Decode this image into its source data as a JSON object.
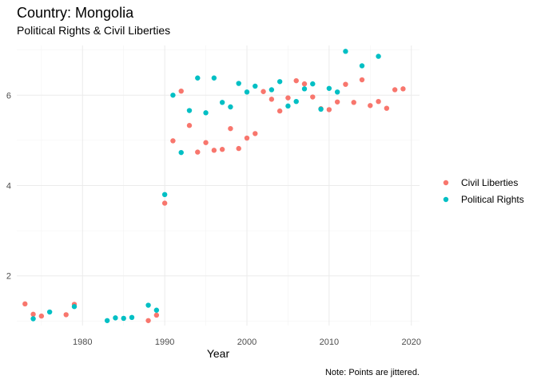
{
  "chart_data": {
    "type": "scatter",
    "title": "Country: Mongolia",
    "subtitle": "Political Rights & Civil Liberties",
    "xlabel": "Year",
    "ylabel": "",
    "caption": "Note: Points are jittered.",
    "xlim": [
      1972,
      2021
    ],
    "ylim": [
      0.9,
      7.1
    ],
    "x_ticks": [
      1980,
      1990,
      2000,
      2010,
      2020
    ],
    "y_ticks": [
      2,
      4,
      6
    ],
    "grid": true,
    "legend_position": "right",
    "series": [
      {
        "name": "Civil Liberties",
        "color": "#F8766D",
        "points": [
          [
            1973,
            1.38
          ],
          [
            1974,
            1.15
          ],
          [
            1975,
            1.11
          ],
          [
            1978,
            1.14
          ],
          [
            1979,
            1.37
          ],
          [
            1988,
            1.01
          ],
          [
            1989,
            1.13
          ],
          [
            1990,
            3.61
          ],
          [
            1991,
            4.99
          ],
          [
            1992,
            6.09
          ],
          [
            1993,
            5.33
          ],
          [
            1994,
            4.74
          ],
          [
            1995,
            4.95
          ],
          [
            1996,
            4.78
          ],
          [
            1997,
            4.8
          ],
          [
            1998,
            5.26
          ],
          [
            1999,
            4.82
          ],
          [
            2000,
            5.05
          ],
          [
            2001,
            5.15
          ],
          [
            2002,
            6.08
          ],
          [
            2003,
            5.91
          ],
          [
            2004,
            5.65
          ],
          [
            2005,
            5.94
          ],
          [
            2006,
            6.32
          ],
          [
            2007,
            6.25
          ],
          [
            2008,
            5.96
          ],
          [
            2009,
            5.7
          ],
          [
            2010,
            5.68
          ],
          [
            2011,
            5.85
          ],
          [
            2012,
            6.24
          ],
          [
            2013,
            5.84
          ],
          [
            2014,
            6.34
          ],
          [
            2015,
            5.77
          ],
          [
            2016,
            5.86
          ],
          [
            2017,
            5.71
          ],
          [
            2018,
            6.12
          ],
          [
            2019,
            6.14
          ]
        ]
      },
      {
        "name": "Political Rights",
        "color": "#00BFC4",
        "points": [
          [
            1974,
            1.05
          ],
          [
            1976,
            1.2
          ],
          [
            1979,
            1.32
          ],
          [
            1983,
            1.01
          ],
          [
            1984,
            1.07
          ],
          [
            1985,
            1.06
          ],
          [
            1986,
            1.08
          ],
          [
            1988,
            1.35
          ],
          [
            1989,
            1.24
          ],
          [
            1990,
            3.8
          ],
          [
            1991,
            6.0
          ],
          [
            1992,
            4.73
          ],
          [
            1993,
            5.66
          ],
          [
            1994,
            6.38
          ],
          [
            1995,
            5.61
          ],
          [
            1996,
            6.38
          ],
          [
            1997,
            5.84
          ],
          [
            1998,
            5.74
          ],
          [
            1999,
            6.26
          ],
          [
            2000,
            6.07
          ],
          [
            2001,
            6.2
          ],
          [
            2003,
            6.12
          ],
          [
            2004,
            6.3
          ],
          [
            2005,
            5.76
          ],
          [
            2006,
            5.86
          ],
          [
            2007,
            6.14
          ],
          [
            2008,
            6.25
          ],
          [
            2009,
            5.69
          ],
          [
            2010,
            6.15
          ],
          [
            2011,
            6.07
          ],
          [
            2012,
            6.97
          ],
          [
            2014,
            6.65
          ],
          [
            2016,
            6.86
          ]
        ]
      }
    ]
  }
}
